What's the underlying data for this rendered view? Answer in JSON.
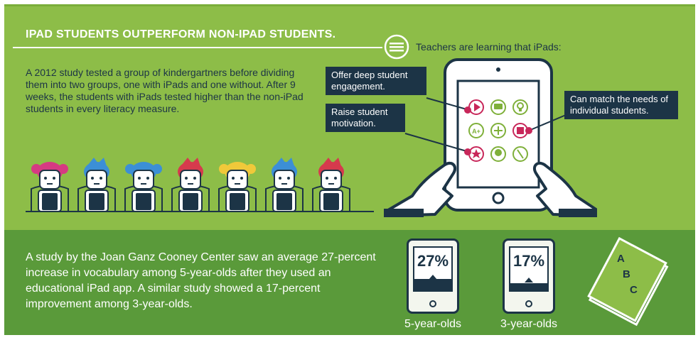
{
  "title": "IPAD STUDENTS OUTPERFORM NON-IPAD STUDENTS.",
  "intro": "A 2012 study tested a group of kindergartners before dividing them into two groups, one with iPads and one without. After 9 weeks, the students with iPads tested higher than the non-iPad students in every literacy measure.",
  "teachers_heading": "Teachers are learning that iPads:",
  "callouts": {
    "engagement": "Offer deep student engagement.",
    "motivation": "Raise student motivation.",
    "needs": "Can match the needs of individual students."
  },
  "bottom_text": "A study by the Joan Ganz Cooney Center saw an average 27-percent increase in vocabulary among 5-year-olds after they used an educational iPad app. A similar study showed a 17-percent improvement among 3-year-olds.",
  "stats": [
    {
      "value": "27%",
      "label": "5-year-olds",
      "fill": 0.27
    },
    {
      "value": "17%",
      "label": "3-year-olds",
      "fill": 0.17
    }
  ],
  "book_letters": {
    "a": "A",
    "b": "B",
    "c": "C"
  },
  "kids": [
    {
      "hair": "#d63a82",
      "style": "pigtails"
    },
    {
      "hair": "#3c8fd6",
      "style": "spiky"
    },
    {
      "hair": "#3c8fd6",
      "style": "pigtails"
    },
    {
      "hair": "#d63a4d",
      "style": "spiky"
    },
    {
      "hair": "#f0c93a",
      "style": "pigtails"
    },
    {
      "hair": "#3c8fd6",
      "style": "spiky"
    },
    {
      "hair": "#d63a4d",
      "style": "spiky"
    }
  ],
  "colors": {
    "top_green": "#8dbd48",
    "bottom_green": "#5a9a3a",
    "navy": "#1c3446",
    "magenta": "#c8275a",
    "app_green": "#7fb03a"
  }
}
